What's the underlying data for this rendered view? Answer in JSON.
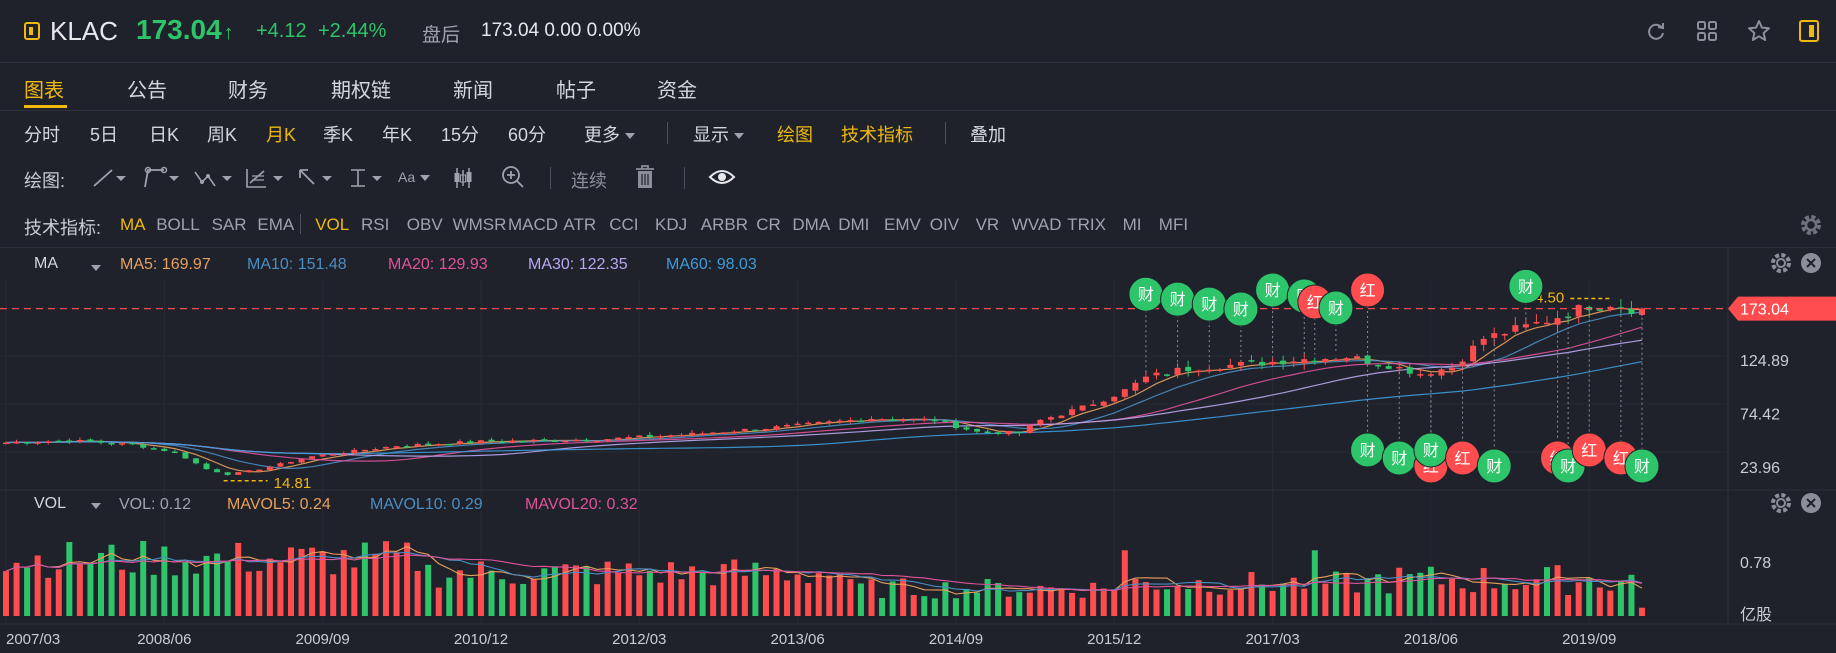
{
  "header": {
    "ticker": "KLAC",
    "price": "173.04",
    "change": "+4.12",
    "change_pct": "+2.44%",
    "after_hours_label": "盘后",
    "after_hours_value": "173.04 0.00 0.00%",
    "price_color": "#2ec46a"
  },
  "tabs": [
    "图表",
    "公告",
    "财务",
    "期权链",
    "新闻",
    "帖子",
    "资金"
  ],
  "active_tab": "图表",
  "periods": [
    "分时",
    "5日",
    "日K",
    "周K",
    "月K",
    "季K",
    "年K",
    "15分",
    "60分",
    "更多"
  ],
  "active_period": "月K",
  "toolbar": {
    "display": "显示",
    "draw": "绘图",
    "indicators": "技术指标",
    "overlay": "叠加"
  },
  "drawing": {
    "label": "绘图:",
    "continuous": "连续",
    "font_label": "Aa"
  },
  "indicators": {
    "label": "技术指标:",
    "items": [
      "MA",
      "BOLL",
      "SAR",
      "EMA",
      "VOL",
      "RSI",
      "OBV",
      "WMSR",
      "MACD",
      "ATR",
      "CCI",
      "KDJ",
      "ARBR",
      "CR",
      "DMA",
      "DMI",
      "EMV",
      "OIV",
      "VR",
      "WVAD",
      "TRIX",
      "MI",
      "MFI"
    ],
    "active": [
      "MA",
      "VOL"
    ]
  },
  "ma_legend": {
    "name": "MA",
    "items": [
      {
        "text": "MA5: 169.97",
        "color": "#e8a05c"
      },
      {
        "text": "MA10: 151.48",
        "color": "#4a8ec4"
      },
      {
        "text": "MA20: 129.93",
        "color": "#e0529c"
      },
      {
        "text": "MA30: 122.35",
        "color": "#b9a6f0"
      },
      {
        "text": "MA60: 98.03",
        "color": "#3d9ad9"
      }
    ]
  },
  "vol_legend": {
    "name": "VOL",
    "items": [
      {
        "text": "VOL: 0.12",
        "color": "#9ea3ad"
      },
      {
        "text": "MAVOL5: 0.24",
        "color": "#e8a05c"
      },
      {
        "text": "MAVOL10: 0.29",
        "color": "#4a8ec4"
      },
      {
        "text": "MAVOL20: 0.32",
        "color": "#e0529c"
      }
    ]
  },
  "colors": {
    "up": "#ff4d4f",
    "down": "#2ec46a",
    "accent": "#f0b90b"
  },
  "chart_data": {
    "type": "candlestick",
    "period": "monthly",
    "x_tick_labels": [
      "2007/03",
      "2008/06",
      "2009/09",
      "2010/12",
      "2012/03",
      "2013/06",
      "2014/09",
      "2015/12",
      "2017/03",
      "2018/06",
      "2019/09"
    ],
    "price_axis_ticks": [
      "124.89",
      "74.42",
      "23.96"
    ],
    "current_price": "173.04",
    "max_marker": "184.50",
    "min_marker": "14.81",
    "y_range": [
      8,
      200
    ],
    "close_path": [
      [
        0,
        47
      ],
      [
        6,
        49
      ],
      [
        12,
        45
      ],
      [
        16,
        38
      ],
      [
        19,
        22
      ],
      [
        21,
        17
      ],
      [
        24,
        22
      ],
      [
        29,
        34
      ],
      [
        37,
        44
      ],
      [
        45,
        48
      ],
      [
        56,
        50
      ],
      [
        65,
        55
      ],
      [
        75,
        63
      ],
      [
        82,
        70
      ],
      [
        88,
        68
      ],
      [
        92,
        57
      ],
      [
        96,
        56
      ],
      [
        98,
        68
      ],
      [
        102,
        80
      ],
      [
        106,
        96
      ],
      [
        108,
        108
      ],
      [
        111,
        115
      ],
      [
        113,
        118
      ],
      [
        118,
        121
      ],
      [
        122,
        125
      ],
      [
        127,
        128
      ],
      [
        131,
        120
      ],
      [
        134,
        112
      ],
      [
        137,
        118
      ],
      [
        140,
        145
      ],
      [
        146,
        162
      ],
      [
        150,
        176
      ],
      [
        152,
        178
      ],
      [
        154,
        173
      ]
    ],
    "events": [
      {
        "label": "财",
        "type": "earnings",
        "month": 108,
        "above": true
      },
      {
        "label": "财",
        "type": "earnings",
        "month": 111,
        "above": true
      },
      {
        "label": "财",
        "type": "earnings",
        "month": 114,
        "above": true
      },
      {
        "label": "财",
        "type": "earnings",
        "month": 117,
        "above": true
      },
      {
        "label": "财",
        "type": "earnings",
        "month": 120,
        "above": true
      },
      {
        "label": "财",
        "type": "earnings",
        "month": 123,
        "above": true
      },
      {
        "label": "红",
        "type": "dividend",
        "month": 124,
        "above": true
      },
      {
        "label": "财",
        "type": "earnings",
        "month": 126,
        "above": true
      },
      {
        "label": "红",
        "type": "dividend",
        "month": 129,
        "above": true
      },
      {
        "label": "财",
        "type": "earnings",
        "month": 129,
        "above": false
      },
      {
        "label": "财",
        "type": "earnings",
        "month": 132,
        "above": false
      },
      {
        "label": "红",
        "type": "dividend",
        "month": 135,
        "above": false
      },
      {
        "label": "财",
        "type": "earnings",
        "month": 135,
        "above": false
      },
      {
        "label": "红",
        "type": "dividend",
        "month": 138,
        "above": false
      },
      {
        "label": "财",
        "type": "earnings",
        "month": 141,
        "above": false
      },
      {
        "label": "财",
        "type": "earnings",
        "month": 144,
        "above": true
      },
      {
        "label": "红",
        "type": "dividend",
        "month": 147,
        "above": false
      },
      {
        "label": "财",
        "type": "earnings",
        "month": 148,
        "above": false
      },
      {
        "label": "红",
        "type": "dividend",
        "month": 150,
        "above": false
      },
      {
        "label": "红",
        "type": "dividend",
        "month": 153,
        "above": false
      },
      {
        "label": "财",
        "type": "earnings",
        "month": 155,
        "above": false
      }
    ],
    "volume_axis": {
      "ticks": [
        "0.78"
      ],
      "unit": "亿股"
    }
  }
}
